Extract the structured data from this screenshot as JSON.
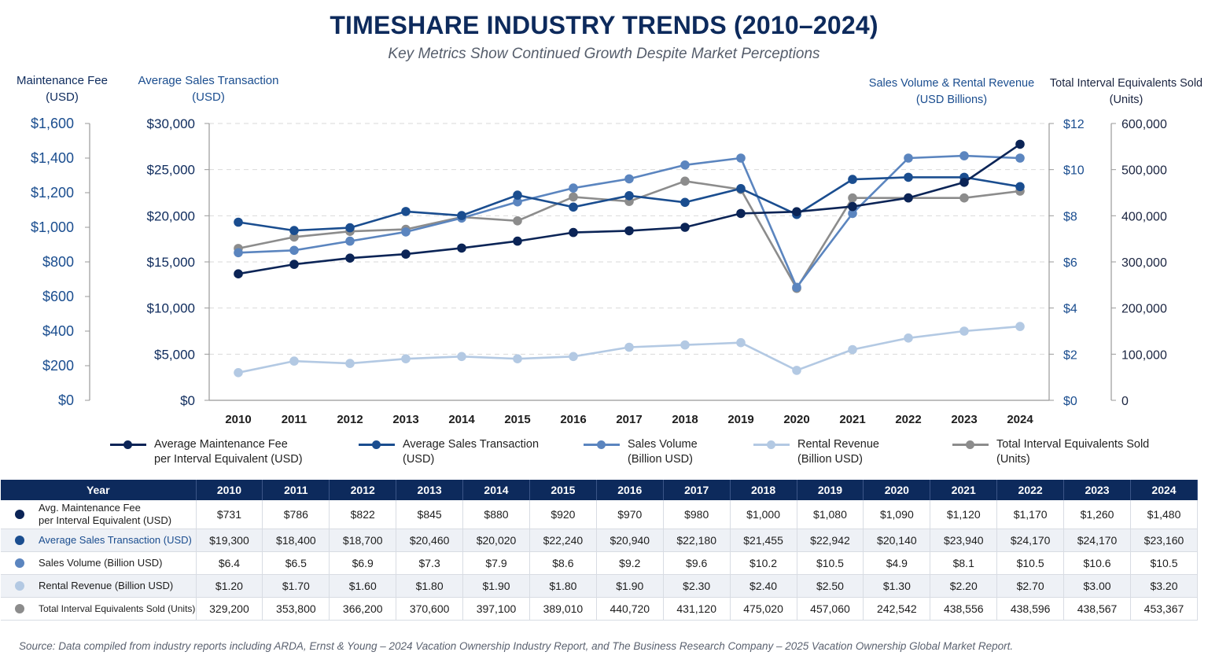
{
  "header": {
    "title": "TIMESHARE INDUSTRY TRENDS (2010–2024)",
    "subtitle": "Key Metrics Show Continued Growth Despite Market Perceptions"
  },
  "axis_titles": {
    "maint": [
      "Maintenance Fee",
      "(USD)"
    ],
    "ast": [
      "Average Sales Transaction",
      "(USD)"
    ],
    "sv": [
      "Sales Volume & Rental Revenue",
      "(USD Billions)"
    ],
    "tie": [
      "Total Interval Equivalents Sold",
      "(Units)"
    ]
  },
  "colors": {
    "maint": "#0b2456",
    "ast": "#1a4d8f",
    "sv": "#5b85bf",
    "rr": "#b3c9e3",
    "tie": "#8c8c8c",
    "axis_blue": "#1a4d8f",
    "header_bg": "#0d2a5c"
  },
  "chart_data": {
    "type": "line",
    "categories": [
      "2010",
      "2011",
      "2012",
      "2013",
      "2014",
      "2015",
      "2016",
      "2017",
      "2018",
      "2019",
      "2020",
      "2021",
      "2022",
      "2023",
      "2024"
    ],
    "axes": {
      "maint": {
        "min": 0,
        "max": 1600,
        "ticks": [
          0,
          200,
          400,
          600,
          800,
          1000,
          1200,
          1400,
          1600
        ],
        "labels": [
          "$0",
          "$200",
          "$400",
          "$600",
          "$800",
          "$1,000",
          "$1,200",
          "$1,400",
          "$1,600"
        ]
      },
      "ast": {
        "min": 0,
        "max": 30000,
        "ticks": [
          0,
          5000,
          10000,
          15000,
          20000,
          25000,
          30000
        ],
        "labels": [
          "$0",
          "$5,000",
          "$10,000",
          "$15,000",
          "$20,000",
          "$25,000",
          "$30,000"
        ]
      },
      "sv": {
        "min": 0,
        "max": 12,
        "ticks": [
          0,
          2,
          4,
          6,
          8,
          10,
          12
        ],
        "labels": [
          "$0",
          "$2",
          "$4",
          "$6",
          "$8",
          "$10",
          "$12"
        ]
      },
      "tie": {
        "min": 0,
        "max": 600000,
        "ticks": [
          0,
          100000,
          200000,
          300000,
          400000,
          500000,
          600000
        ],
        "labels": [
          "0",
          "100,000",
          "200,000",
          "300,000",
          "400,000",
          "500,000",
          "600,000"
        ]
      }
    },
    "grid": true,
    "legend_position": "bottom",
    "series": [
      {
        "key": "maint",
        "axis": "maint",
        "name": [
          "Average Maintenance Fee",
          "per Interval Equivalent (USD)"
        ],
        "values": [
          731,
          786,
          822,
          845,
          880,
          920,
          970,
          980,
          1000,
          1080,
          1090,
          1120,
          1170,
          1260,
          1480
        ]
      },
      {
        "key": "ast",
        "axis": "ast",
        "name": [
          "Average Sales Transaction",
          "(USD)"
        ],
        "values": [
          19300,
          18400,
          18700,
          20460,
          20020,
          22240,
          20940,
          22180,
          21455,
          22942,
          20140,
          23940,
          24170,
          24170,
          23160
        ]
      },
      {
        "key": "sv",
        "axis": "sv",
        "name": [
          "Sales Volume",
          "(Billion USD)"
        ],
        "values": [
          6.4,
          6.5,
          6.9,
          7.3,
          7.9,
          8.6,
          9.2,
          9.6,
          10.2,
          10.5,
          4.9,
          8.1,
          10.5,
          10.6,
          10.5
        ]
      },
      {
        "key": "rr",
        "axis": "sv",
        "name": [
          "Rental Revenue",
          "(Billion USD)"
        ],
        "values": [
          1.2,
          1.7,
          1.6,
          1.8,
          1.9,
          1.8,
          1.9,
          2.3,
          2.4,
          2.5,
          1.3,
          2.2,
          2.7,
          3.0,
          3.2
        ]
      },
      {
        "key": "tie",
        "axis": "tie",
        "name": [
          "Total Interval Equivalents Sold",
          "(Units)"
        ],
        "values": [
          329200,
          353800,
          366200,
          370600,
          397100,
          389010,
          440720,
          431120,
          475020,
          457060,
          242542,
          438556,
          438596,
          438567,
          453367
        ]
      }
    ]
  },
  "table": {
    "corner": "Year",
    "years": [
      "2010",
      "2011",
      "2012",
      "2013",
      "2014",
      "2015",
      "2016",
      "2017",
      "2018",
      "2019",
      "2020",
      "2021",
      "2022",
      "2023",
      "2024"
    ],
    "rows": [
      {
        "key": "maint",
        "label": "Avg. Maintenance Fee\nper Interval Equivalent (USD)",
        "cells": [
          "$731",
          "$786",
          "$822",
          "$845",
          "$880",
          "$920",
          "$970",
          "$980",
          "$1,000",
          "$1,080",
          "$1,090",
          "$1,120",
          "$1,170",
          "$1,260",
          "$1,480"
        ]
      },
      {
        "key": "ast",
        "label": "Average Sales Transaction (USD)",
        "cells": [
          "$19,300",
          "$18,400",
          "$18,700",
          "$20,460",
          "$20,020",
          "$22,240",
          "$20,940",
          "$22,180",
          "$21,455",
          "$22,942",
          "$20,140",
          "$23,940",
          "$24,170",
          "$24,170",
          "$23,160"
        ]
      },
      {
        "key": "sv",
        "label": "Sales Volume (Billion USD)",
        "cells": [
          "$6.4",
          "$6.5",
          "$6.9",
          "$7.3",
          "$7.9",
          "$8.6",
          "$9.2",
          "$9.6",
          "$10.2",
          "$10.5",
          "$4.9",
          "$8.1",
          "$10.5",
          "$10.6",
          "$10.5"
        ]
      },
      {
        "key": "rr",
        "label": "Rental Revenue (Billion USD)",
        "cells": [
          "$1.20",
          "$1.70",
          "$1.60",
          "$1.80",
          "$1.90",
          "$1.80",
          "$1.90",
          "$2.30",
          "$2.40",
          "$2.50",
          "$1.30",
          "$2.20",
          "$2.70",
          "$3.00",
          "$3.20"
        ]
      },
      {
        "key": "tie",
        "label": "Total Interval Equivalents Sold (Units)",
        "cells": [
          "329,200",
          "353,800",
          "366,200",
          "370,600",
          "397,100",
          "389,010",
          "440,720",
          "431,120",
          "475,020",
          "457,060",
          "242,542",
          "438,556",
          "438,596",
          "438,567",
          "453,367"
        ]
      }
    ]
  },
  "source": "Source: Data compiled from industry reports including ARDA, Ernst & Young – 2024 Vacation Ownership Industry Report, and The Business Research Company – 2025 Vacation Ownership Global Market Report."
}
